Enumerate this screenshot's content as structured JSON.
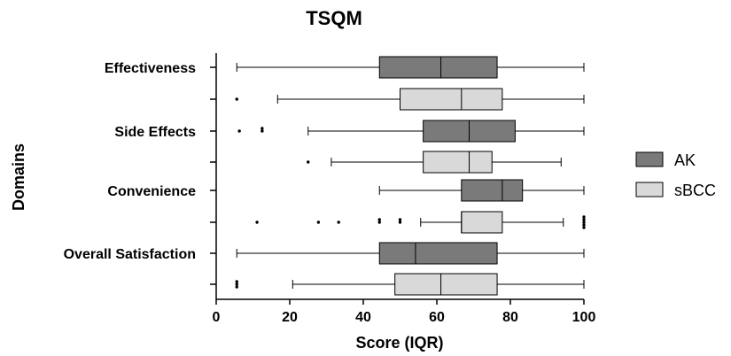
{
  "chart_data": {
    "type": "boxplot",
    "title": "TSQM",
    "xlabel": "Score (IQR)",
    "ylabel": "Domains",
    "xlim": [
      0,
      100
    ],
    "xticks": [
      0,
      20,
      40,
      60,
      80,
      100
    ],
    "legend_position": "right",
    "categories": [
      "Effectiveness",
      "Side Effects",
      "Convenience",
      "Overall Satisfaction"
    ],
    "series": [
      {
        "name": "AK",
        "color": "#7a7a7a",
        "boxes": [
          {
            "category": "Effectiveness",
            "whisker_low": 5.6,
            "q1": 44.4,
            "median": 61.1,
            "q3": 76.4,
            "whisker_high": 100,
            "outliers": []
          },
          {
            "category": "Side Effects",
            "whisker_low": 25,
            "q1": 56.3,
            "median": 68.8,
            "q3": 81.3,
            "whisker_high": 100,
            "outliers": [
              6.3,
              12.5,
              12.5
            ]
          },
          {
            "category": "Convenience",
            "whisker_low": 44.4,
            "q1": 66.7,
            "median": 77.8,
            "q3": 83.3,
            "whisker_high": 100,
            "outliers": []
          },
          {
            "category": "Overall Satisfaction",
            "whisker_low": 5.6,
            "q1": 44.4,
            "median": 54.2,
            "q3": 76.4,
            "whisker_high": 100,
            "outliers": []
          }
        ]
      },
      {
        "name": "sBCC",
        "color": "#d9d9d9",
        "boxes": [
          {
            "category": "Effectiveness",
            "whisker_low": 16.7,
            "q1": 50,
            "median": 66.7,
            "q3": 77.8,
            "whisker_high": 100,
            "outliers": [
              5.6
            ]
          },
          {
            "category": "Side Effects",
            "whisker_low": 31.3,
            "q1": 56.3,
            "median": 68.8,
            "q3": 75,
            "whisker_high": 93.8,
            "outliers": [
              25
            ]
          },
          {
            "category": "Convenience",
            "whisker_low": 55.6,
            "q1": 66.7,
            "median": 66.7,
            "q3": 77.8,
            "whisker_high": 94.4,
            "outliers": [
              11.1,
              27.8,
              33.3,
              44.4,
              44.4,
              50,
              50,
              100,
              100,
              100,
              100,
              100
            ]
          },
          {
            "category": "Overall Satisfaction",
            "whisker_low": 20.8,
            "q1": 48.6,
            "median": 61.1,
            "q3": 76.4,
            "whisker_high": 100,
            "outliers": [
              5.6,
              5.6,
              5.6
            ]
          }
        ]
      }
    ]
  }
}
